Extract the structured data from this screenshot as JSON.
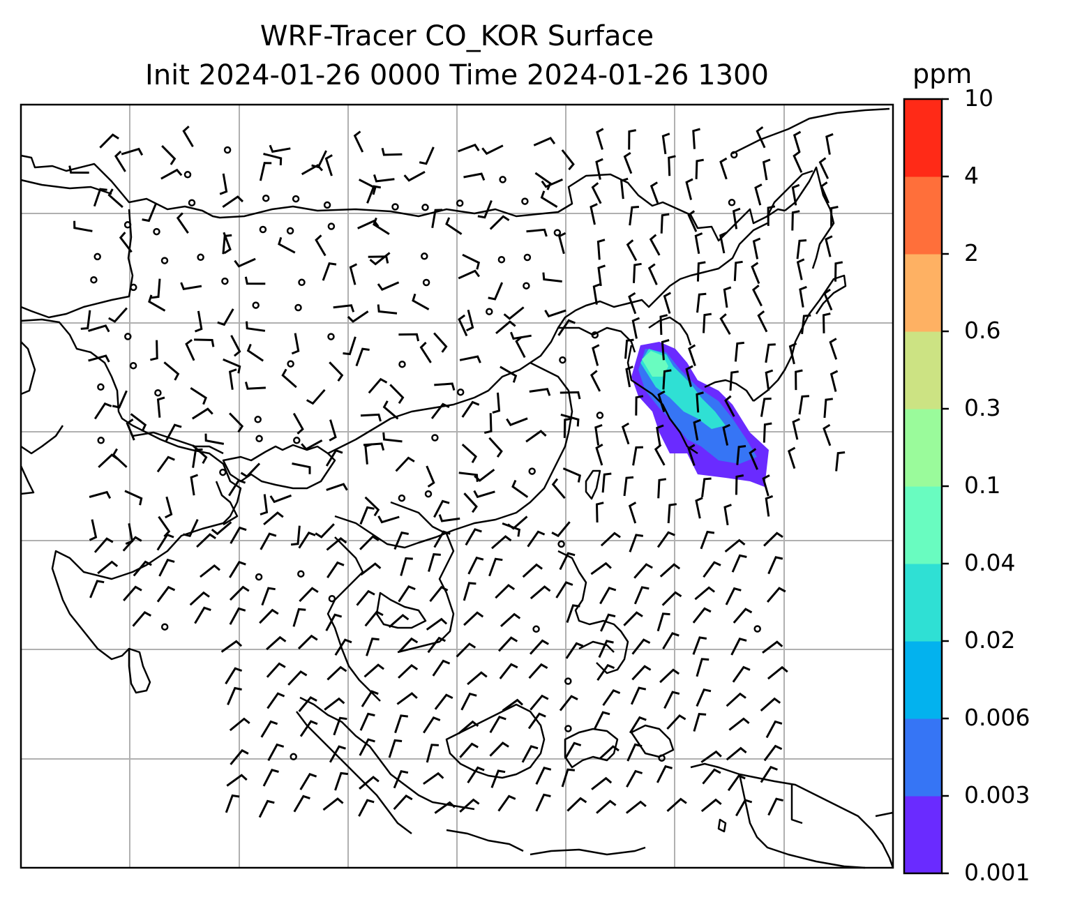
{
  "title": {
    "line1": "WRF-Tracer CO_KOR Surface",
    "line2": "Init 2024-01-26 0000 Time 2024-01-26 1300"
  },
  "colorbar": {
    "unit": "ppm",
    "levels": [
      "0.001",
      "0.003",
      "0.006",
      "0.02",
      "0.04",
      "0.1",
      "0.3",
      "0.6",
      "2",
      "4",
      "10"
    ],
    "colors": [
      "#6a2bff",
      "#3675f5",
      "#03b2ee",
      "#2fe0d4",
      "#69fcc0",
      "#9afb9b",
      "#cce383",
      "#feb163",
      "#ff6f3a",
      "#ff2a17"
    ]
  },
  "map": {
    "gridlines": true,
    "plume_colors": {
      "outer": "#6a2bff",
      "mid": "#3675f5",
      "inner": "#2fe0d4",
      "core": "#69fcc0"
    }
  }
}
